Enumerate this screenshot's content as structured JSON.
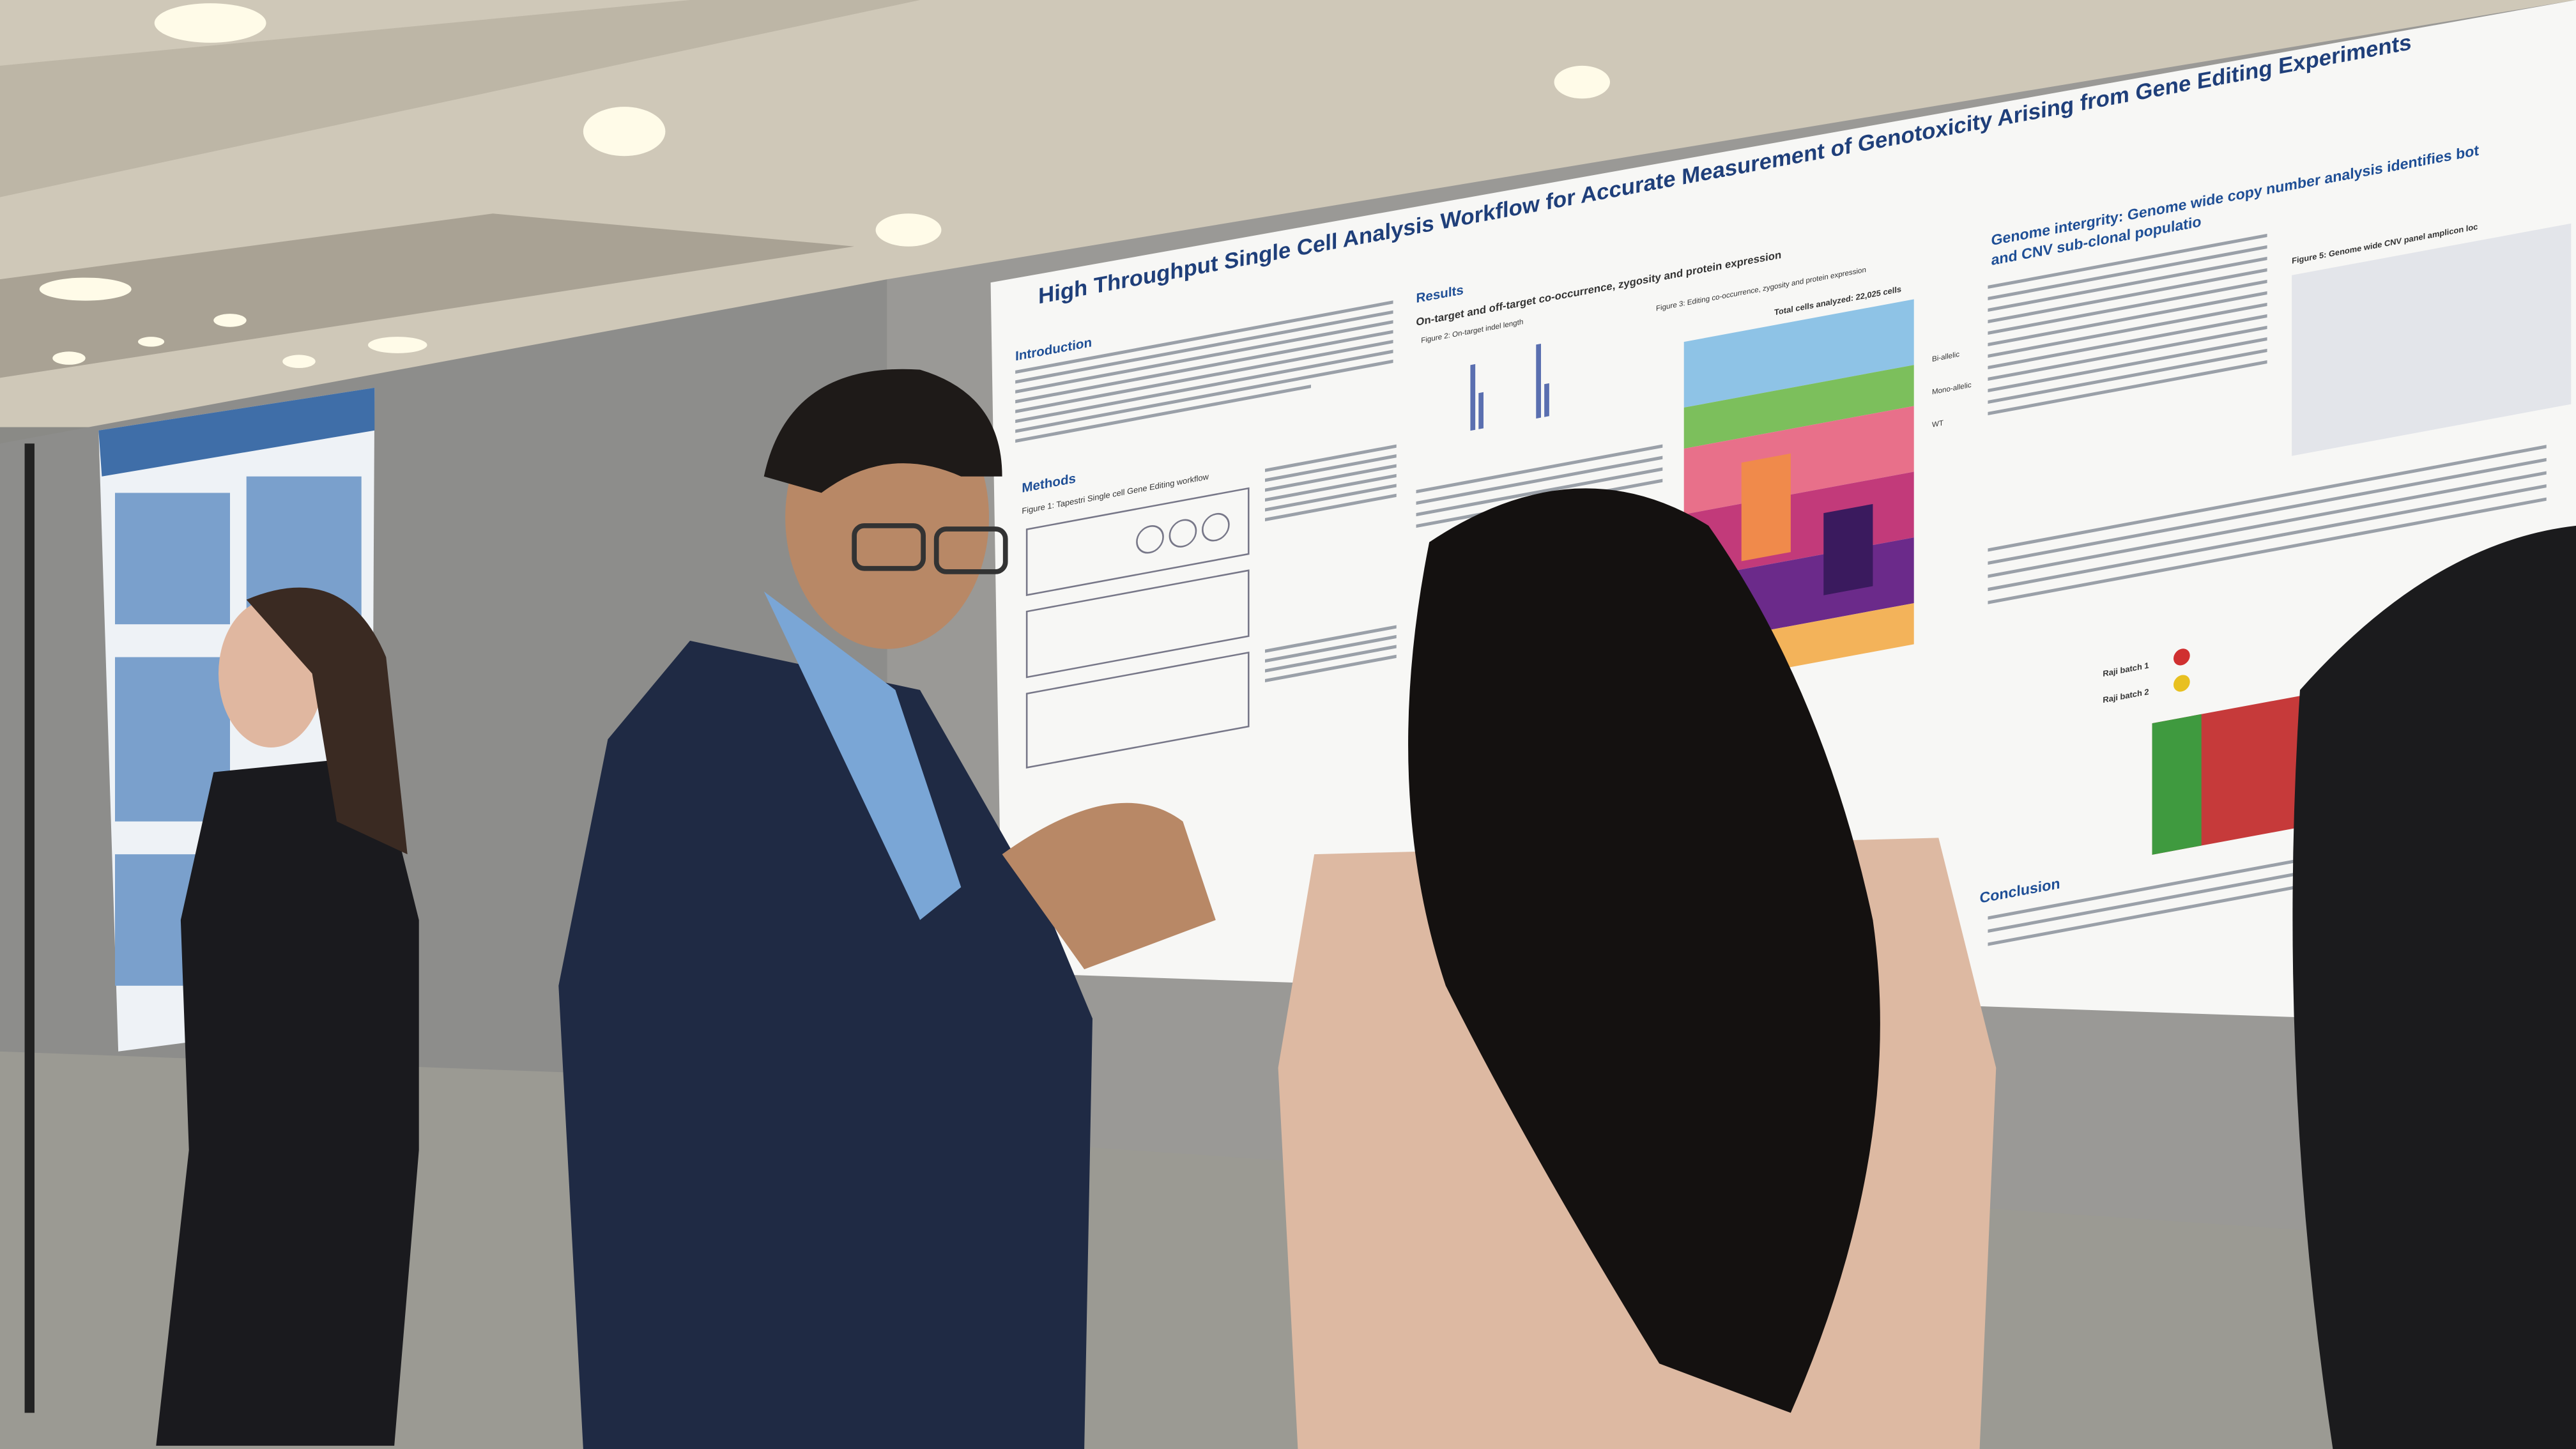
{
  "poster": {
    "title": "High Throughput Single Cell Analysis Workflow for Accurate Measurement of Genotoxicity Arising from Gene Editing Experiments",
    "introduction": "Introduction",
    "methods": "Methods",
    "figure_1": "Figure 1: Tapestri Single cell Gene Editing workflow",
    "results": "Results",
    "results_subtitle": "On-target and off-target co-occurrence, zygosity and protein expression",
    "figure_2": "Figure 2: On-target indel length",
    "figure_3": "Figure 3: Editing co-occurrence, zygosity and protein expression",
    "total_cells": "Total cells analyzed: 22,025 cells",
    "legend": [
      "Bi-allelic",
      "Mono-allelic",
      "WT"
    ],
    "genome_heading": [
      "Genome intergrity: Genome wide copy number analysis identifies bot",
      "and CNV sub-clonal populatio"
    ],
    "figure_5": "Figure 5: Genome wide CNV panel amplicon loc",
    "batches": [
      "Raji batch 1",
      "Raji batch 2"
    ],
    "conclusion": "Conclusion"
  }
}
